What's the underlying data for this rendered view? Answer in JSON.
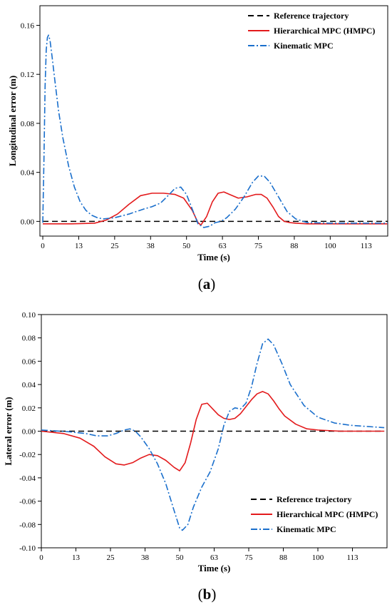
{
  "chart_data": [
    {
      "type": "line",
      "panel_label": "(a)",
      "xlabel": "Time (s)",
      "ylabel": "Longitudinal error (m)",
      "xlim": [
        -1,
        120
      ],
      "ylim": [
        -0.012,
        0.176
      ],
      "xticks": [
        "0",
        "13",
        "25",
        "38",
        "50",
        "63",
        "75",
        "88",
        "100",
        "113"
      ],
      "yticks": [
        "0.00",
        "0.04",
        "0.08",
        "0.12",
        "0.16"
      ],
      "legend_position": "top-right",
      "series": [
        {
          "name": "Reference trajectory",
          "style": "dashed",
          "color": "#000000",
          "x": [
            0,
            120
          ],
          "y": [
            0.0,
            0.0
          ]
        },
        {
          "name": "Hierarchical MPC (HMPC)",
          "style": "solid",
          "color": "#e31a1c",
          "x": [
            0,
            10,
            18,
            22,
            26,
            30,
            34,
            38,
            42,
            46,
            49,
            52,
            54,
            55,
            57,
            59,
            61,
            63,
            65,
            68,
            71,
            74,
            76,
            78,
            80,
            82,
            84,
            86,
            88,
            92,
            100,
            110,
            120
          ],
          "y": [
            -0.002,
            -0.002,
            -0.0015,
            0.001,
            0.006,
            0.014,
            0.021,
            0.023,
            0.023,
            0.022,
            0.019,
            0.009,
            -0.001,
            -0.003,
            0.004,
            0.016,
            0.023,
            0.024,
            0.022,
            0.019,
            0.02,
            0.022,
            0.022,
            0.019,
            0.012,
            0.004,
            0.0,
            -0.001,
            -0.0015,
            -0.002,
            -0.002,
            -0.002,
            -0.002
          ]
        },
        {
          "name": "Kinematic MPC",
          "style": "dashdot",
          "color": "#1a6fcc",
          "x": [
            0,
            0.4,
            0.8,
            1.2,
            1.6,
            2.0,
            2.5,
            3.2,
            4.2,
            5.5,
            7,
            9,
            11,
            13,
            15,
            17,
            19,
            21,
            25,
            30,
            35,
            38,
            41,
            44,
            46,
            48,
            50,
            52,
            54,
            56,
            58,
            60,
            62,
            64,
            67,
            70,
            73,
            75,
            77,
            79,
            82,
            85,
            88,
            92,
            100,
            110,
            120
          ],
          "y": [
            -0.001,
            0.05,
            0.11,
            0.14,
            0.15,
            0.152,
            0.148,
            0.135,
            0.115,
            0.09,
            0.068,
            0.045,
            0.028,
            0.016,
            0.009,
            0.005,
            0.003,
            0.002,
            0.003,
            0.006,
            0.01,
            0.012,
            0.015,
            0.022,
            0.027,
            0.028,
            0.022,
            0.01,
            -0.002,
            -0.005,
            -0.004,
            -0.001,
            0.0,
            0.003,
            0.01,
            0.02,
            0.032,
            0.037,
            0.037,
            0.032,
            0.02,
            0.008,
            0.002,
            -0.001,
            -0.0015,
            -0.0015,
            -0.0015
          ]
        }
      ]
    },
    {
      "type": "line",
      "panel_label": "(b)",
      "xlabel": "Time (s)",
      "ylabel": "Lateral error (m)",
      "xlim": [
        0,
        125
      ],
      "ylim": [
        -0.1,
        0.1
      ],
      "xticks": [
        "0",
        "13",
        "25",
        "38",
        "50",
        "63",
        "75",
        "88",
        "100",
        "113"
      ],
      "yticks": [
        "-0.10",
        "-0.08",
        "-0.06",
        "-0.04",
        "-0.02",
        "0.00",
        "0.02",
        "0.04",
        "0.06",
        "0.08",
        "0.10"
      ],
      "legend_position": "bottom-right",
      "series": [
        {
          "name": "Reference trajectory",
          "style": "dashed",
          "color": "#000000",
          "x": [
            0,
            124
          ],
          "y": [
            0.0,
            0.0
          ]
        },
        {
          "name": "Hierarchical MPC (HMPC)",
          "style": "solid",
          "color": "#e31a1c",
          "x": [
            0,
            8,
            14,
            19,
            23,
            27,
            30,
            33,
            36,
            39,
            42,
            45,
            48,
            50,
            52,
            54,
            56,
            58,
            60,
            62,
            64,
            66,
            68,
            70,
            72,
            74,
            76,
            78,
            80,
            82,
            84,
            86,
            88,
            92,
            96,
            100,
            108,
            115,
            124
          ],
          "y": [
            0.0,
            -0.002,
            -0.006,
            -0.013,
            -0.022,
            -0.028,
            -0.029,
            -0.027,
            -0.023,
            -0.02,
            -0.021,
            -0.025,
            -0.031,
            -0.034,
            -0.027,
            -0.01,
            0.01,
            0.023,
            0.024,
            0.019,
            0.014,
            0.011,
            0.01,
            0.011,
            0.015,
            0.021,
            0.027,
            0.032,
            0.034,
            0.032,
            0.026,
            0.019,
            0.013,
            0.006,
            0.002,
            0.001,
            0.0,
            0.0,
            0.0
          ]
        },
        {
          "name": "Kinematic MPC",
          "style": "dashdot",
          "color": "#1a6fcc",
          "x": [
            0,
            10,
            16,
            20,
            24,
            27,
            30,
            32,
            34,
            36,
            39,
            42,
            45,
            48,
            50,
            51,
            53,
            55,
            58,
            61,
            64,
            66,
            68,
            70,
            72,
            74,
            76,
            78,
            80,
            82,
            84,
            87,
            90,
            95,
            100,
            106,
            112,
            118,
            124
          ],
          "y": [
            0.001,
            -0.0005,
            -0.002,
            -0.004,
            -0.004,
            -0.002,
            0.001,
            0.002,
            0.0,
            -0.005,
            -0.015,
            -0.028,
            -0.045,
            -0.068,
            -0.083,
            -0.085,
            -0.08,
            -0.065,
            -0.048,
            -0.035,
            -0.015,
            0.005,
            0.017,
            0.02,
            0.019,
            0.024,
            0.038,
            0.058,
            0.075,
            0.079,
            0.074,
            0.058,
            0.04,
            0.022,
            0.012,
            0.007,
            0.005,
            0.004,
            0.003
          ]
        }
      ]
    }
  ]
}
